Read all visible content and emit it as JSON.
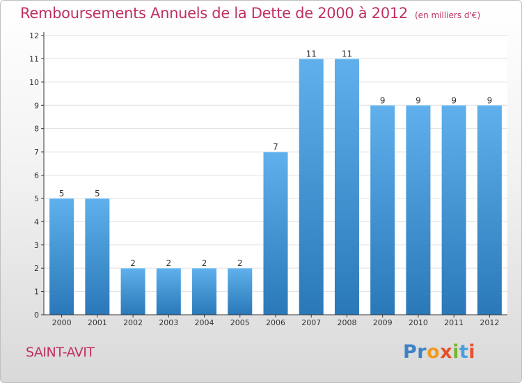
{
  "header": {
    "title": "Remboursements Annuels de la Dette de 2000 à 2012",
    "unit": "(en milliers d'€)"
  },
  "footer": {
    "commune": "SAINT-AVIT",
    "logo_letters": [
      "P",
      "r",
      "o",
      "x",
      "i",
      "t",
      "i"
    ],
    "logo_colors": [
      "#3e82c6",
      "#3e82c6",
      "#f29a1e",
      "#e8502e",
      "#7ab52e",
      "#4aa0d8",
      "#e8502e"
    ]
  },
  "colors": {
    "title": "#c03060",
    "bar_light": "#5fb0ec",
    "bar_dark": "#2a78b8",
    "axis": "#333333",
    "grid": "#e0e0e0"
  },
  "chart_data": {
    "type": "bar",
    "title": "Remboursements Annuels de la Dette de 2000 à 2012",
    "xlabel": "",
    "ylabel": "",
    "categories": [
      "2000",
      "2001",
      "2002",
      "2003",
      "2004",
      "2005",
      "2006",
      "2007",
      "2008",
      "2009",
      "2010",
      "2011",
      "2012"
    ],
    "values": [
      5,
      5,
      2,
      2,
      2,
      2,
      7,
      11,
      11,
      9,
      9,
      9,
      9
    ],
    "ylim": [
      0,
      12
    ],
    "yticks": [
      0,
      1,
      2,
      3,
      4,
      5,
      6,
      7,
      8,
      9,
      10,
      11,
      12
    ],
    "grid": true
  }
}
